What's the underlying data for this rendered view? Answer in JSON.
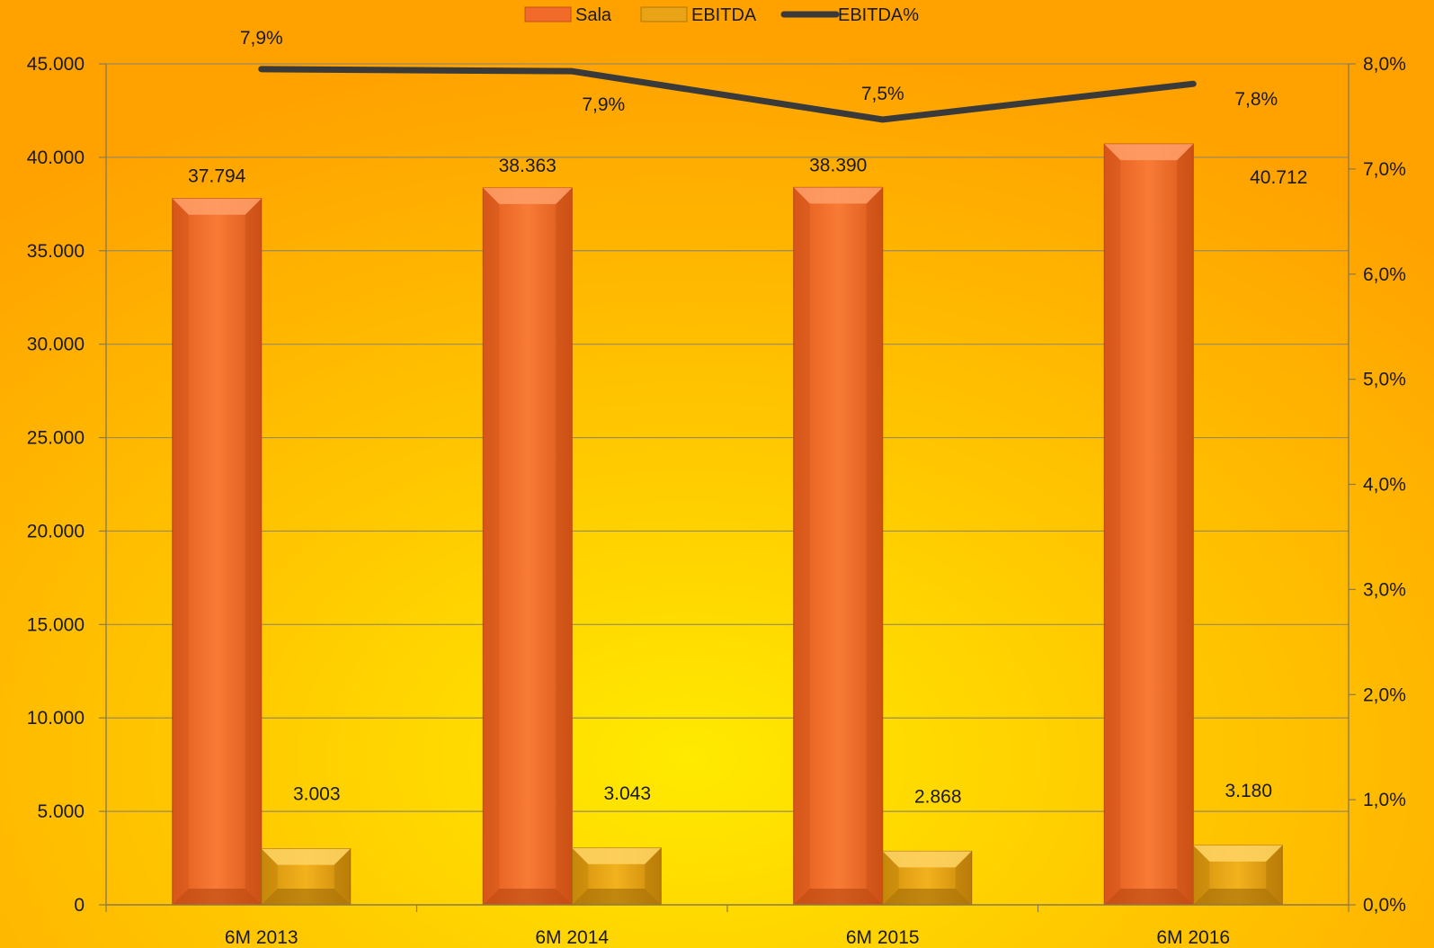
{
  "chart_data": {
    "type": "bar",
    "categories": [
      "6M 2013",
      "6M 2014",
      "6M 2015",
      "6M 2016"
    ],
    "series": [
      {
        "name": "Sala",
        "type": "bar",
        "axis": "left",
        "color": "#F26B2A",
        "values": [
          37794,
          38363,
          38390,
          40712
        ],
        "labels": [
          "37.794",
          "38.363",
          "38.390",
          "40.712"
        ]
      },
      {
        "name": "EBITDA",
        "type": "bar",
        "axis": "left",
        "color": "#E8A317",
        "values": [
          3003,
          3043,
          2868,
          3180
        ],
        "labels": [
          "3.003",
          "3.043",
          "2.868",
          "3.180"
        ]
      },
      {
        "name": "EBITDA%",
        "type": "line",
        "axis": "right",
        "color": "#3A3A3A",
        "values": [
          7.95,
          7.93,
          7.47,
          7.81
        ],
        "labels": [
          "7,9%",
          "7,9%",
          "7,5%",
          "7,8%"
        ]
      }
    ],
    "y_left": {
      "min": 0,
      "max": 45000,
      "ticks": [
        0,
        5000,
        10000,
        15000,
        20000,
        25000,
        30000,
        35000,
        40000,
        45000
      ],
      "tick_labels": [
        "0",
        "5.000",
        "10.000",
        "15.000",
        "20.000",
        "25.000",
        "30.000",
        "35.000",
        "40.000",
        "45.000"
      ]
    },
    "y_right": {
      "min": 0,
      "max": 8,
      "ticks": [
        0,
        1,
        2,
        3,
        4,
        5,
        6,
        7,
        8
      ],
      "tick_labels": [
        "0,0%",
        "1,0%",
        "2,0%",
        "3,0%",
        "4,0%",
        "5,0%",
        "6,0%",
        "7,0%",
        "8,0%"
      ]
    },
    "grid": true,
    "legend": "top-center",
    "background_colors": {
      "outer": "#FFA500",
      "inner": "#FFE000"
    }
  }
}
